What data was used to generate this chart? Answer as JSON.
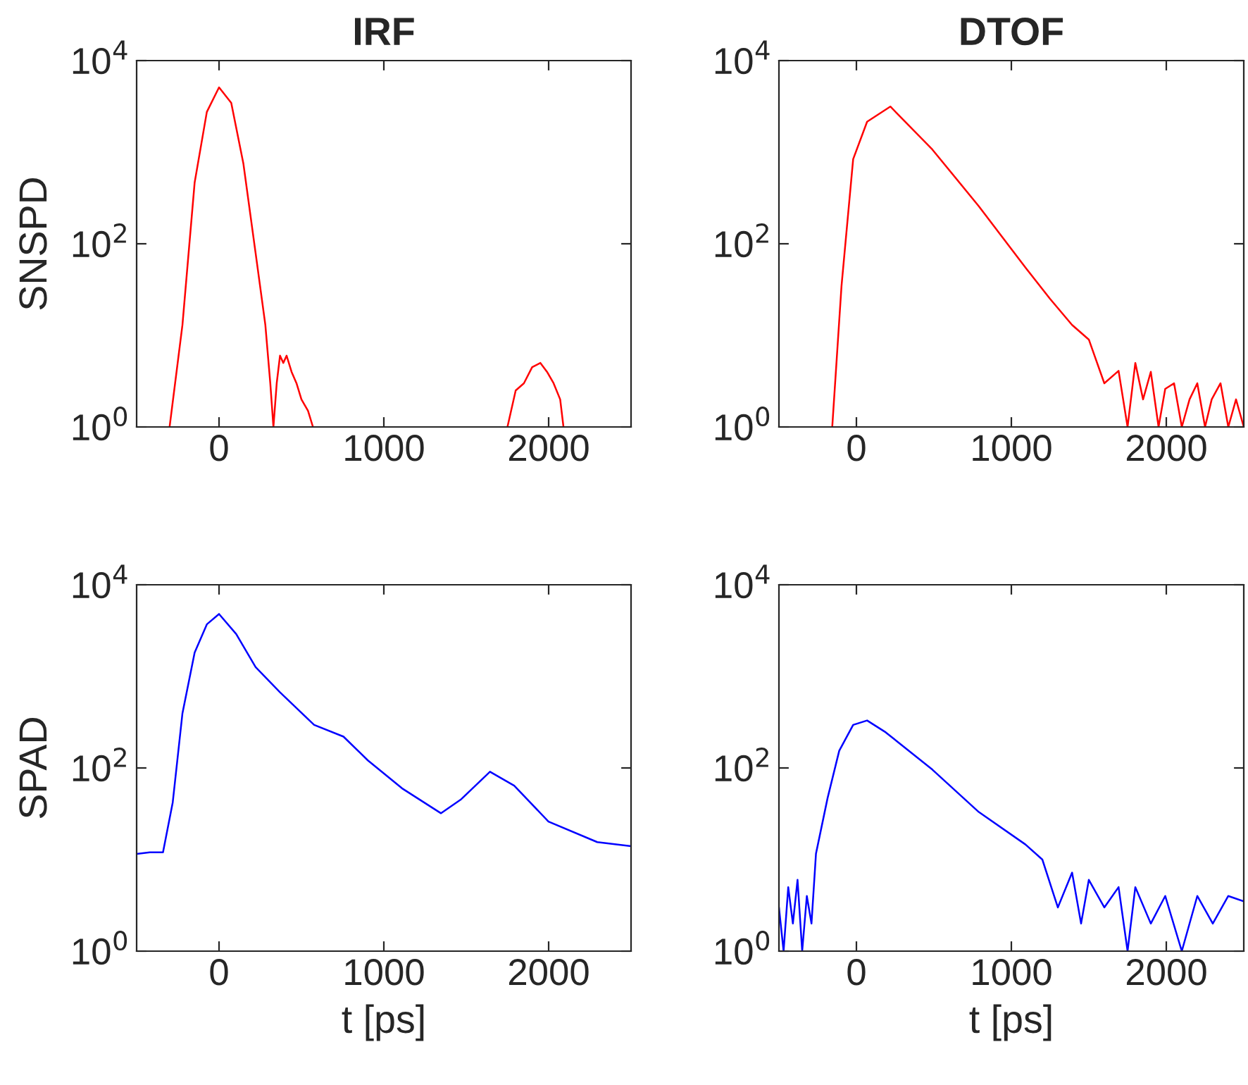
{
  "chart_data": [
    {
      "type": "line",
      "title": "IRF",
      "ylabel": "SNSPD",
      "log": "y",
      "grid": false,
      "xlim": [
        -500,
        2500
      ],
      "xticks": [
        0,
        1000,
        2000
      ],
      "ylim": [
        1,
        10000
      ],
      "yticks": [
        {
          "value": 1,
          "label": "10$^{0}$"
        },
        {
          "value": 100,
          "label": "10$^{2}$"
        },
        {
          "value": 10000,
          "label": "10$^{4}$"
        }
      ],
      "series": [
        {
          "color": "#ff0000",
          "x": [
            -300,
            -222,
            -148,
            -74,
            0,
            74,
            148,
            222,
            281,
            311,
            330,
            350,
            370,
            390,
            410,
            440,
            470,
            500,
            540,
            570,
            600,
            1750,
            1800,
            1850,
            1900,
            1950,
            1990,
            2030,
            2070,
            2090
          ],
          "values": [
            1,
            13,
            466,
            2750,
            5100,
            3450,
            745,
            79,
            13,
            3,
            1,
            3,
            6,
            5,
            6,
            4,
            3,
            2,
            1.5,
            1,
            null,
            1,
            2.5,
            3,
            4.5,
            5,
            4,
            3,
            2,
            1
          ]
        }
      ]
    },
    {
      "type": "line",
      "title": "DTOF",
      "log": "y",
      "grid": false,
      "xlim": [
        -500,
        2500
      ],
      "xticks": [
        0,
        1000,
        2000
      ],
      "ylim": [
        1,
        10000
      ],
      "yticks": [
        {
          "value": 1,
          "label": "10$^{0}$"
        },
        {
          "value": 100,
          "label": "10$^{2}$"
        },
        {
          "value": 10000,
          "label": "10$^{4}$"
        }
      ],
      "series": [
        {
          "color": "#ff0000",
          "x": [
            -156,
            -96,
            -21,
            69,
            219,
            490,
            790,
            1091,
            1250,
            1392,
            1500,
            1600,
            1692,
            1750,
            1800,
            1850,
            1900,
            1950,
            1993,
            2050,
            2100,
            2150,
            2200,
            2250,
            2293,
            2350,
            2400,
            2450,
            2500
          ],
          "values": [
            1,
            35,
            840,
            2150,
            3150,
            1070,
            257,
            55,
            25,
            13,
            9,
            3,
            4.1,
            1,
            5,
            2,
            4,
            1,
            2.6,
            3,
            1,
            2,
            3,
            1,
            2,
            3,
            1,
            2,
            1
          ]
        }
      ]
    },
    {
      "type": "line",
      "ylabel": "SPAD",
      "xlabel": "t [ps]",
      "log": "y",
      "grid": false,
      "xlim": [
        -500,
        2500
      ],
      "xticks": [
        0,
        1000,
        2000
      ],
      "ylim": [
        1,
        10000
      ],
      "yticks": [
        {
          "value": 1,
          "label": "10$^{0}$"
        },
        {
          "value": 100,
          "label": "10$^{2}$"
        },
        {
          "value": 10000,
          "label": "10$^{4}$"
        }
      ],
      "series": [
        {
          "color": "#0000ff",
          "x": [
            -500,
            -420,
            -340,
            -281,
            -222,
            -148,
            -74,
            0,
            104,
            222,
            370,
            577,
            755,
            903,
            1110,
            1347,
            1466,
            1644,
            1791,
            1999,
            2295,
            2500
          ],
          "values": [
            11.5,
            12,
            12,
            42,
            395,
            1820,
            3700,
            4800,
            2900,
            1260,
            670,
            295,
            220,
            121,
            60,
            32,
            45,
            91,
            64,
            26,
            15.5,
            14
          ]
        }
      ]
    },
    {
      "type": "line",
      "xlabel": "t [ps]",
      "log": "y",
      "grid": false,
      "xlim": [
        -500,
        2500
      ],
      "xticks": [
        0,
        1000,
        2000
      ],
      "ylim": [
        1,
        10000
      ],
      "yticks": [
        {
          "value": 1,
          "label": "10$^{0}$"
        },
        {
          "value": 100,
          "label": "10$^{2}$"
        },
        {
          "value": 10000,
          "label": "10$^{4}$"
        }
      ],
      "series": [
        {
          "color": "#0000ff",
          "x": [
            -500,
            -470,
            -440,
            -410,
            -380,
            -350,
            -320,
            -290,
            -261,
            -186,
            -111,
            -21,
            69,
            189,
            490,
            790,
            1091,
            1200,
            1300,
            1392,
            1450,
            1500,
            1600,
            1692,
            1750,
            1800,
            1900,
            1993,
            2100,
            2200,
            2300,
            2400,
            2500
          ],
          "values": [
            3,
            1,
            5,
            2,
            6,
            1,
            4,
            2,
            11.6,
            47,
            154,
            295,
            330,
            245,
            96,
            33,
            14.6,
            10,
            3,
            7.2,
            2,
            6,
            3,
            5,
            1,
            5,
            2,
            4,
            1,
            4,
            2,
            4,
            3.5
          ]
        }
      ]
    }
  ]
}
